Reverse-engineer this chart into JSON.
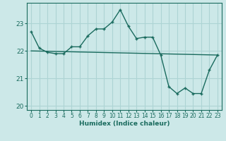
{
  "xlabel": "Humidex (Indice chaleur)",
  "bg_color": "#cce8e8",
  "line_color": "#1a6b5e",
  "grid_color": "#add4d4",
  "x_data": [
    0,
    1,
    2,
    3,
    4,
    5,
    6,
    7,
    8,
    9,
    10,
    11,
    12,
    13,
    14,
    15,
    16,
    17,
    18,
    19,
    20,
    21,
    22,
    23
  ],
  "y_data": [
    22.7,
    22.1,
    21.95,
    21.9,
    21.9,
    22.15,
    22.15,
    22.55,
    22.8,
    22.8,
    23.05,
    23.5,
    22.9,
    22.45,
    22.5,
    22.5,
    21.85,
    20.7,
    20.45,
    20.65,
    20.45,
    20.45,
    21.3,
    21.85
  ],
  "trend_x": [
    0,
    23
  ],
  "trend_y": [
    22.0,
    21.85
  ],
  "xlim": [
    -0.5,
    23.5
  ],
  "ylim": [
    19.85,
    23.75
  ],
  "yticks": [
    20,
    21,
    22,
    23
  ],
  "xticks": [
    0,
    1,
    2,
    3,
    4,
    5,
    6,
    7,
    8,
    9,
    10,
    11,
    12,
    13,
    14,
    15,
    16,
    17,
    18,
    19,
    20,
    21,
    22,
    23
  ],
  "tick_fontsize": 5.5,
  "xlabel_fontsize": 6.5
}
